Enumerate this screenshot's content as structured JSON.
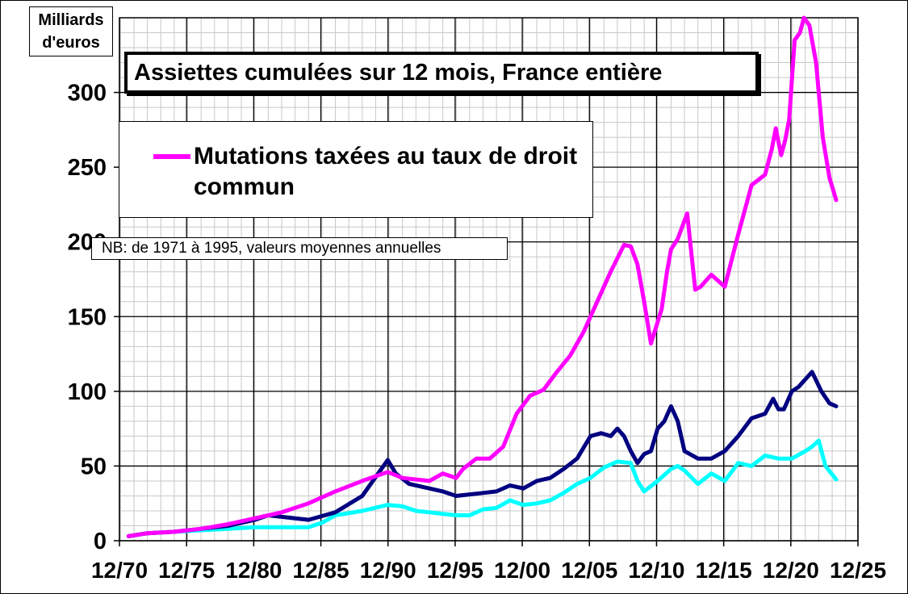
{
  "chart_data": {
    "type": "line",
    "title": "Assiettes cumulées sur 12 mois, France entière",
    "ylabel": "Milliards d'euros",
    "xlabel": "",
    "ylim": [
      0,
      350
    ],
    "xlim": [
      1970.92,
      2025.92
    ],
    "yticks": [
      "0",
      "50",
      "100",
      "150",
      "200",
      "250",
      "300"
    ],
    "xticks": [
      "12/70",
      "12/75",
      "12/80",
      "12/85",
      "12/90",
      "12/95",
      "12/00",
      "12/05",
      "12/10",
      "12/15",
      "12/20",
      "12/25"
    ],
    "grid": true,
    "legend": {
      "position": "top-left",
      "entries": [
        "Mutations taxées au taux de droit commun"
      ]
    },
    "annotations": [
      "NB:  de 1971 à 1995, valeurs moyennes annuelles"
    ],
    "series": [
      {
        "name": "Mutations taxées au taux de droit commun",
        "color": "#ff00ff",
        "x": [
          1971.6,
          1973,
          1975,
          1977,
          1979,
          1981,
          1983,
          1985,
          1987,
          1989,
          1990.9,
          1992,
          1994,
          1995,
          1996,
          1996.5,
          1997.5,
          1998.5,
          1999.5,
          2000.5,
          2001.5,
          2002.5,
          2003.5,
          2004.5,
          2005.5,
          2006.5,
          2007.5,
          2008.5,
          2009,
          2009.5,
          2010,
          2010.5,
          2011.3,
          2011.7,
          2012,
          2012.5,
          2013.2,
          2013.8,
          2014.2,
          2015,
          2016,
          2017,
          2018,
          2019,
          2019.5,
          2019.8,
          2020.2,
          2020.5,
          2020.8,
          2021.2,
          2021.6,
          2021.9,
          2022.3,
          2022.8,
          2023.3,
          2023.8,
          2024.3
        ],
        "values": [
          3,
          5,
          6,
          8,
          11,
          15,
          19,
          25,
          33,
          40,
          46,
          42,
          40,
          45,
          42,
          48,
          55,
          55,
          63,
          85,
          97,
          101,
          113,
          124,
          140,
          160,
          180,
          198,
          197,
          185,
          160,
          132,
          155,
          180,
          195,
          202,
          219,
          168,
          170,
          178,
          170,
          205,
          238,
          245,
          262,
          276,
          258,
          268,
          282,
          335,
          340,
          350,
          345,
          320,
          270,
          243,
          228
        ]
      },
      {
        "name": "",
        "color": "#000080",
        "x": [
          1971.6,
          1973,
          1975,
          1977,
          1979,
          1981,
          1982,
          1983,
          1985,
          1987,
          1989,
          1990.9,
          1991.5,
          1992.5,
          1994,
          1995,
          1996,
          1997,
          1998,
          1999,
          2000,
          2001,
          2002,
          2003,
          2004,
          2005,
          2006,
          2006.8,
          2007.5,
          2008,
          2008.5,
          2009,
          2009.5,
          2010,
          2010.5,
          2011,
          2011.5,
          2012,
          2012.5,
          2013,
          2014,
          2015,
          2016,
          2017,
          2018,
          2019,
          2019.6,
          2020,
          2020.4,
          2021,
          2021.5,
          2022,
          2022.5,
          2023.2,
          2023.8,
          2024.3
        ],
        "values": [
          3,
          5,
          6,
          8,
          10,
          14,
          17,
          16,
          14,
          19,
          30,
          54,
          45,
          38,
          35,
          33,
          30,
          31,
          32,
          33,
          37,
          35,
          40,
          42,
          48,
          55,
          70,
          72,
          70,
          75,
          70,
          60,
          52,
          58,
          60,
          75,
          80,
          90,
          80,
          60,
          55,
          55,
          60,
          70,
          82,
          85,
          95,
          88,
          88,
          100,
          103,
          108,
          113,
          100,
          92,
          90
        ]
      },
      {
        "name": "",
        "color": "#00ffff",
        "x": [
          1971.6,
          1973,
          1975,
          1977,
          1979,
          1981,
          1983,
          1985,
          1986,
          1987,
          1989,
          1990.9,
          1992,
          1993,
          1994,
          1995,
          1996,
          1997,
          1998,
          1999,
          2000,
          2001,
          2002,
          2003,
          2004,
          2005,
          2006,
          2007,
          2008,
          2009,
          2009.5,
          2010,
          2011,
          2012,
          2012.5,
          2013,
          2014,
          2015,
          2016,
          2017,
          2018,
          2019,
          2020,
          2021,
          2022,
          2022.5,
          2023,
          2023.5,
          2024.3
        ],
        "values": [
          3,
          5,
          6,
          7,
          8,
          9,
          9,
          9,
          12,
          17,
          20,
          24,
          23,
          20,
          19,
          18,
          17,
          17,
          21,
          22,
          27,
          24,
          25,
          27,
          32,
          38,
          42,
          49,
          53,
          52,
          40,
          33,
          40,
          48,
          50,
          47,
          38,
          45,
          40,
          52,
          50,
          57,
          55,
          55,
          60,
          63,
          67,
          50,
          41
        ]
      }
    ]
  },
  "labels": {
    "unit_line1": "Milliards",
    "unit_line2": "d'euros",
    "title": "Assiettes cumulées sur 12 mois, France entière",
    "legend_entry": "Mutations taxées au taux de droit commun",
    "note": "NB:  de 1971 à 1995, valeurs moyennes annuelles"
  }
}
